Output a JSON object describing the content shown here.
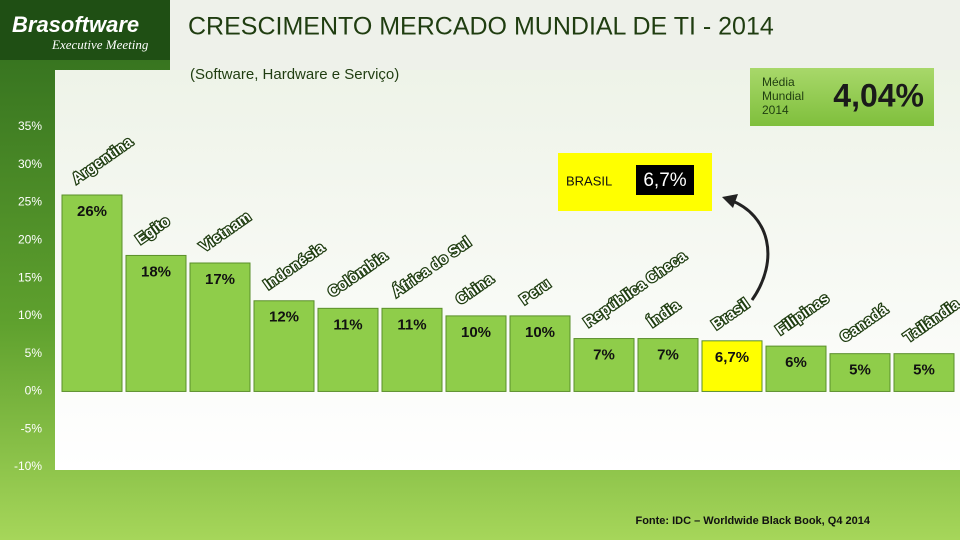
{
  "chart_data": {
    "type": "bar",
    "title": "CRESCIMENTO MERCADO MUNDIAL DE TI - 2014",
    "subtitle": "(Software, Hardware e Serviço)",
    "categories": [
      "Argentina",
      "Egito",
      "Vietnam",
      "Indonésia",
      "Colômbia",
      "África do Sul",
      "China",
      "Peru",
      "República Checa",
      "Índia",
      "Brasil",
      "Filipinas",
      "Canadá",
      "Tailândia"
    ],
    "values": [
      26,
      18,
      17,
      12,
      11,
      11,
      10,
      10,
      7,
      7,
      6.7,
      6,
      5,
      5
    ],
    "value_labels": [
      "26%",
      "18%",
      "17%",
      "12%",
      "11%",
      "11%",
      "10%",
      "10%",
      "7%",
      "7%",
      "6,7%",
      "6%",
      "5%",
      "5%"
    ],
    "colors": [
      "#8fcd4a",
      "#8fcd4a",
      "#8fcd4a",
      "#8fcd4a",
      "#8fcd4a",
      "#8fcd4a",
      "#8fcd4a",
      "#8fcd4a",
      "#8fcd4a",
      "#8fcd4a",
      "#ffff00",
      "#8fcd4a",
      "#8fcd4a",
      "#8fcd4a"
    ],
    "ylim": [
      -10,
      35
    ],
    "yticks": [
      {
        "value": 35,
        "label": "35%"
      },
      {
        "value": 30,
        "label": "30%"
      },
      {
        "value": 25,
        "label": "25%"
      },
      {
        "value": 20,
        "label": "20%"
      },
      {
        "value": 15,
        "label": "15%"
      },
      {
        "value": 10,
        "label": "10%"
      },
      {
        "value": 5,
        "label": "5%"
      },
      {
        "value": 0,
        "label": "0%"
      },
      {
        "value": -5,
        "label": "-5%"
      },
      {
        "value": -10,
        "label": "-10%"
      }
    ],
    "grid": false,
    "highlight_box": {
      "label": "BRASIL",
      "value_label": "6,7%"
    },
    "world_average": {
      "label": [
        "Média",
        "Mundial",
        "2014"
      ],
      "value_label": "4,04%"
    },
    "source": "Fonte: IDC – Worldwide Black Book, Q4 2014"
  },
  "logo": {
    "name": "Brasoftware",
    "tagline": "Executive Meeting"
  }
}
